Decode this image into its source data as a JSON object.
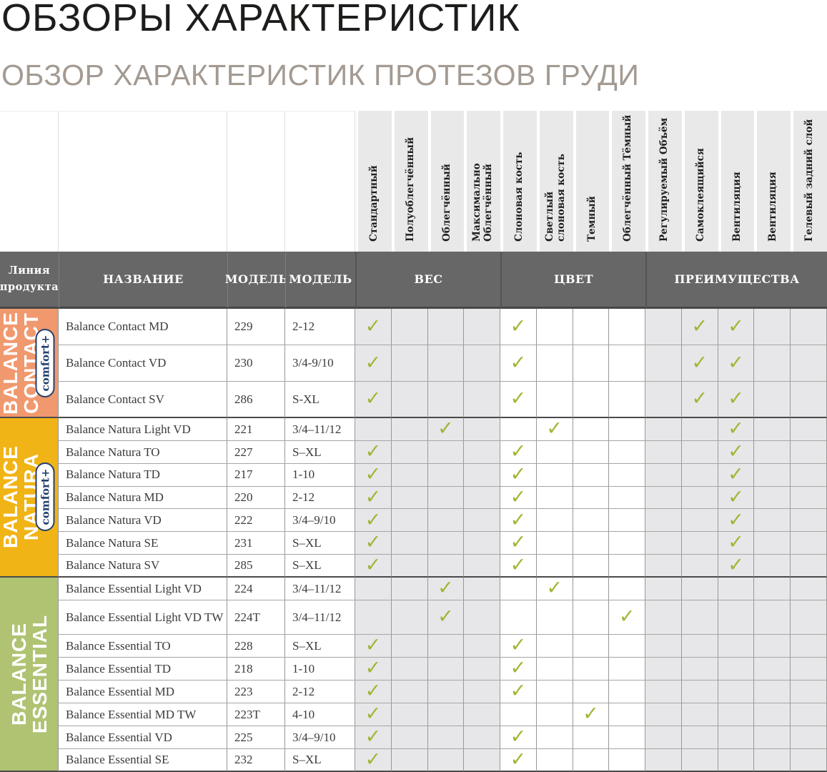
{
  "page": {
    "title": "ОБЗОРЫ ХАРАКТЕРИСТИК",
    "subtitle": "ОБЗОР ХАРАКТЕРИСТИК ПРОТЕЗОВ ГРУДИ"
  },
  "table": {
    "corner_header_lines": [
      "Линия",
      "продукта"
    ],
    "column_headers": {
      "name": "НАЗВАНИЕ",
      "model": "МОДЕЛЬ",
      "model2": "МОДЕЛЬ"
    },
    "groups": [
      {
        "label": "ВЕС",
        "span": 4
      },
      {
        "label": "ЦВЕТ",
        "span": 4
      },
      {
        "label": "ПРЕИМУЩЕСТВА",
        "span": 5
      }
    ],
    "feature_columns": [
      "Стандартный",
      "Полуоблегчённый",
      "Облегчённый",
      "Максимально\nОблегчённый",
      "Слоновая кость",
      "Светлый\nслоновая кость",
      "Темный",
      "Облегчённый Тёмный",
      "Регулируемый Объём",
      "Самоклеящийся",
      "Вентиляция",
      "Вентиляция",
      "Гелевый задний слой"
    ],
    "check_glyph": "✓",
    "colors": {
      "check": "#9CB733",
      "header_bg": "#676767",
      "badge_navy": "#24406E",
      "subtitle_gray": "#A39A92"
    },
    "sections": [
      {
        "id": "balance-contact",
        "label_lines": [
          "BALANCE",
          "CONTACT"
        ],
        "badge": "comfort+",
        "color": "#F0996F",
        "rows": [
          {
            "name": "Balance Contact MD",
            "model": "229",
            "sizes": "2-12",
            "checks": [
              1,
              5,
              10,
              11
            ]
          },
          {
            "name": "Balance Contact VD",
            "model": "230",
            "sizes": "3/4-9/10",
            "checks": [
              1,
              5,
              10,
              11
            ]
          },
          {
            "name": "Balance Contact SV",
            "model": "286",
            "sizes": "S-XL",
            "checks": [
              1,
              5,
              10,
              11
            ]
          }
        ]
      },
      {
        "id": "balance-natura",
        "label_lines": [
          "BALANCE",
          "NATURA"
        ],
        "badge": "comfort+",
        "color": "#F1B416",
        "rows": [
          {
            "name": "Balance Natura Light VD",
            "model": "221",
            "sizes": "3/4–11/12",
            "checks": [
              3,
              6,
              11
            ]
          },
          {
            "name": "Balance Natura TO",
            "model": "227",
            "sizes": "S–XL",
            "checks": [
              1,
              5,
              11
            ]
          },
          {
            "name": "Balance Natura TD",
            "model": "217",
            "sizes": "1-10",
            "checks": [
              1,
              5,
              11
            ]
          },
          {
            "name": "Balance Natura MD",
            "model": "220",
            "sizes": "2-12",
            "checks": [
              1,
              5,
              11
            ]
          },
          {
            "name": "Balance Natura VD",
            "model": "222",
            "sizes": "3/4–9/10",
            "checks": [
              1,
              5,
              11
            ]
          },
          {
            "name": "Balance Natura SE",
            "model": "231",
            "sizes": "S–XL",
            "checks": [
              1,
              5,
              11
            ]
          },
          {
            "name": "Balance Natura SV",
            "model": "285",
            "sizes": "S–XL",
            "checks": [
              1,
              5,
              11
            ]
          }
        ]
      },
      {
        "id": "balance-essential",
        "label_lines": [
          "BALANCE",
          "ESSENTIAL"
        ],
        "badge": null,
        "color": "#AFC373",
        "rows": [
          {
            "name": "Balance Essential Light VD",
            "model": "224",
            "sizes": "3/4–11/12",
            "checks": [
              3,
              6
            ]
          },
          {
            "name": "Balance Essential Light VD TW",
            "model": "224T",
            "sizes": "3/4–11/12",
            "checks": [
              3,
              8
            ]
          },
          {
            "name": "Balance Essential TO",
            "model": "228",
            "sizes": "S–XL",
            "checks": [
              1,
              5
            ]
          },
          {
            "name": "Balance Essential TD",
            "model": "218",
            "sizes": "1-10",
            "checks": [
              1,
              5
            ]
          },
          {
            "name": "Balance Essential MD",
            "model": "223",
            "sizes": "2-12",
            "checks": [
              1,
              5
            ]
          },
          {
            "name": "Balance Essential MD TW",
            "model": "223T",
            "sizes": "4-10",
            "checks": [
              1,
              7
            ]
          },
          {
            "name": "Balance Essential VD",
            "model": "225",
            "sizes": "3/4–9/10",
            "checks": [
              1,
              5
            ]
          },
          {
            "name": "Balance Essential SE",
            "model": "232",
            "sizes": "S–XL",
            "checks": [
              1,
              5
            ]
          }
        ]
      }
    ]
  }
}
